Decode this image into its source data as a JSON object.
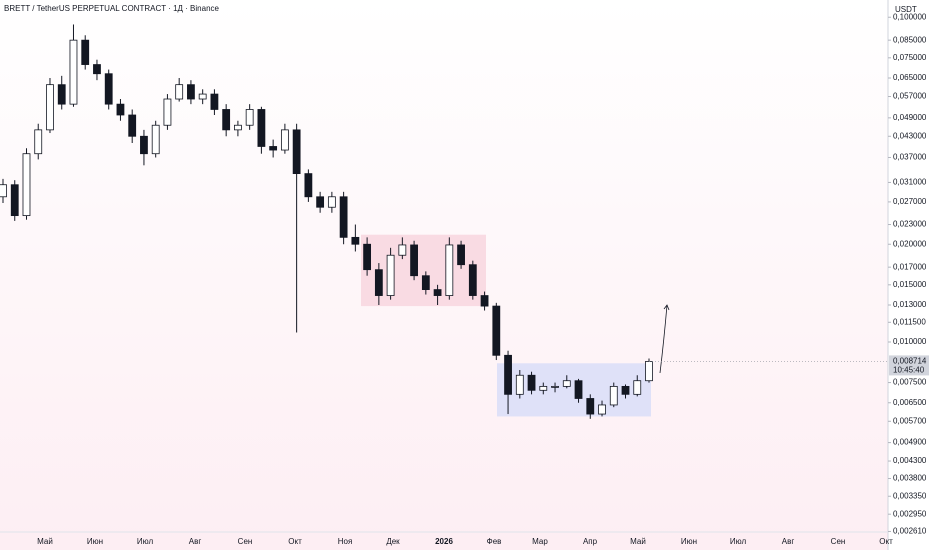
{
  "chart_data": {
    "type": "candlestick",
    "title": "BRETT / TetherUS PERPETUAL CONTRACT · 1Д · Binance",
    "y_unit": "USDT",
    "log_scale": true,
    "ylim": [
      0.0026,
      0.113
    ],
    "yticks": [
      {
        "value": 0.1,
        "label": "0,100000"
      },
      {
        "value": 0.085,
        "label": "0,085000"
      },
      {
        "value": 0.075,
        "label": "0,075000"
      },
      {
        "value": 0.065,
        "label": "0,065000"
      },
      {
        "value": 0.057,
        "label": "0,057000"
      },
      {
        "value": 0.049,
        "label": "0,049000"
      },
      {
        "value": 0.043,
        "label": "0,043000"
      },
      {
        "value": 0.037,
        "label": "0,037000"
      },
      {
        "value": 0.031,
        "label": "0,031000"
      },
      {
        "value": 0.027,
        "label": "0,027000"
      },
      {
        "value": 0.023,
        "label": "0,023000"
      },
      {
        "value": 0.02,
        "label": "0,020000"
      },
      {
        "value": 0.017,
        "label": "0,017000"
      },
      {
        "value": 0.015,
        "label": "0,015000"
      },
      {
        "value": 0.013,
        "label": "0,013000"
      },
      {
        "value": 0.0115,
        "label": "0,011500"
      },
      {
        "value": 0.01,
        "label": "0,010000"
      },
      {
        "value": 0.0075,
        "label": "0,007500"
      },
      {
        "value": 0.0065,
        "label": "0,006500"
      },
      {
        "value": 0.0057,
        "label": "0,005700"
      },
      {
        "value": 0.0049,
        "label": "0,004900"
      },
      {
        "value": 0.0043,
        "label": "0,004300"
      },
      {
        "value": 0.0038,
        "label": "0,003800"
      },
      {
        "value": 0.00335,
        "label": "0,003350"
      },
      {
        "value": 0.00295,
        "label": "0,002950"
      },
      {
        "value": 0.00261,
        "label": "0,002610"
      }
    ],
    "x_labels": [
      "Май",
      "Июн",
      "Июл",
      "Авг",
      "Сен",
      "Окт",
      "Ноя",
      "Дек",
      "2026",
      "Фев",
      "Мар",
      "Апр",
      "Май",
      "Июн",
      "Июл",
      "Авг",
      "Сен",
      "Окт"
    ],
    "up_color": "#ffffff",
    "down_color": "#131722",
    "candles": [
      [
        0.028,
        0.0318,
        0.0268,
        0.0305
      ],
      [
        0.0305,
        0.0315,
        0.0236,
        0.0245
      ],
      [
        0.0245,
        0.0395,
        0.0238,
        0.038
      ],
      [
        0.038,
        0.047,
        0.0365,
        0.045
      ],
      [
        0.045,
        0.065,
        0.044,
        0.062
      ],
      [
        0.062,
        0.066,
        0.052,
        0.054
      ],
      [
        0.054,
        0.095,
        0.053,
        0.085
      ],
      [
        0.085,
        0.088,
        0.069,
        0.0715
      ],
      [
        0.0715,
        0.074,
        0.064,
        0.067
      ],
      [
        0.067,
        0.069,
        0.052,
        0.054
      ],
      [
        0.054,
        0.056,
        0.048,
        0.05
      ],
      [
        0.05,
        0.052,
        0.041,
        0.043
      ],
      [
        0.043,
        0.045,
        0.035,
        0.038
      ],
      [
        0.038,
        0.048,
        0.037,
        0.0465
      ],
      [
        0.0465,
        0.058,
        0.045,
        0.056
      ],
      [
        0.056,
        0.065,
        0.055,
        0.062
      ],
      [
        0.062,
        0.064,
        0.054,
        0.056
      ],
      [
        0.056,
        0.06,
        0.054,
        0.058
      ],
      [
        0.058,
        0.06,
        0.05,
        0.052
      ],
      [
        0.052,
        0.054,
        0.043,
        0.045
      ],
      [
        0.045,
        0.048,
        0.043,
        0.0465
      ],
      [
        0.0465,
        0.054,
        0.045,
        0.052
      ],
      [
        0.052,
        0.053,
        0.038,
        0.04
      ],
      [
        0.04,
        0.042,
        0.037,
        0.039
      ],
      [
        0.039,
        0.047,
        0.038,
        0.045
      ],
      [
        0.045,
        0.047,
        0.0107,
        0.033
      ],
      [
        0.033,
        0.034,
        0.027,
        0.028
      ],
      [
        0.028,
        0.029,
        0.025,
        0.026
      ],
      [
        0.026,
        0.029,
        0.025,
        0.028
      ],
      [
        0.028,
        0.029,
        0.02,
        0.021
      ],
      [
        0.021,
        0.023,
        0.019,
        0.02
      ],
      [
        0.02,
        0.021,
        0.016,
        0.0167
      ],
      [
        0.0167,
        0.0175,
        0.013,
        0.0139
      ],
      [
        0.0139,
        0.0195,
        0.0135,
        0.0185
      ],
      [
        0.0185,
        0.021,
        0.018,
        0.0199
      ],
      [
        0.0199,
        0.0205,
        0.0155,
        0.016
      ],
      [
        0.016,
        0.0165,
        0.014,
        0.0145
      ],
      [
        0.0145,
        0.015,
        0.013,
        0.0139
      ],
      [
        0.0139,
        0.021,
        0.0135,
        0.0199
      ],
      [
        0.0199,
        0.0205,
        0.0168,
        0.0173
      ],
      [
        0.0173,
        0.0178,
        0.0135,
        0.0139
      ],
      [
        0.0139,
        0.0143,
        0.0125,
        0.0129
      ],
      [
        0.0129,
        0.0132,
        0.0088,
        0.0091
      ],
      [
        0.0091,
        0.0094,
        0.006,
        0.0069
      ],
      [
        0.0069,
        0.0082,
        0.0067,
        0.0079
      ],
      [
        0.0079,
        0.0081,
        0.0069,
        0.0071
      ],
      [
        0.0071,
        0.0075,
        0.0069,
        0.0073
      ],
      [
        0.0073,
        0.0075,
        0.007,
        0.0073
      ],
      [
        0.0073,
        0.0079,
        0.0072,
        0.0076
      ],
      [
        0.0076,
        0.0077,
        0.0065,
        0.0067
      ],
      [
        0.0067,
        0.0069,
        0.0058,
        0.006
      ],
      [
        0.006,
        0.0066,
        0.0059,
        0.0064
      ],
      [
        0.0064,
        0.0075,
        0.0063,
        0.0073
      ],
      [
        0.0073,
        0.0074,
        0.0067,
        0.0069
      ],
      [
        0.0069,
        0.0079,
        0.0068,
        0.0076
      ],
      [
        0.0076,
        0.0089,
        0.0075,
        0.008714
      ]
    ],
    "last_price": {
      "value": 0.008714,
      "label": "0,008714"
    },
    "countdown": "10:45:40",
    "zones": [
      {
        "top": 0.0214,
        "bottom": 0.0129,
        "color": "#f9dbe3"
      },
      {
        "top": 0.0086,
        "bottom": 0.0059,
        "color": "#dfe1f8"
      }
    ]
  }
}
